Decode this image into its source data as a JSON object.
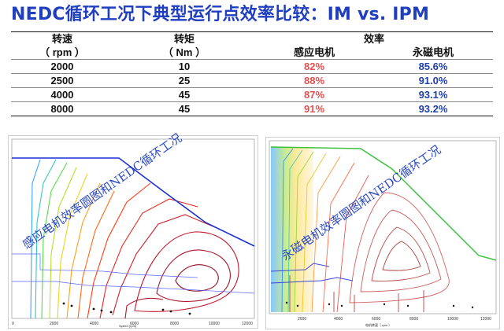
{
  "title": "NEDC循环工况下典型运行点效率比较：IM vs. IPM",
  "table": {
    "header": {
      "speed": "转速",
      "torque": "转矩",
      "efficiency": "效率",
      "speed_unit": "（ rpm ）",
      "torque_unit": "（ Nm ）",
      "im": "感应电机",
      "ipm": "永磁电机"
    },
    "rows": [
      {
        "speed": "2000",
        "torque": "10",
        "im": "82%",
        "ipm": "85.6%"
      },
      {
        "speed": "2500",
        "torque": "25",
        "im": "88%",
        "ipm": "91.0%"
      },
      {
        "speed": "4000",
        "torque": "45",
        "im": "87%",
        "ipm": "93.1%"
      },
      {
        "speed": "8000",
        "torque": "45",
        "im": "91%",
        "ipm": "93.2%"
      }
    ]
  },
  "left_map": {
    "overlay_text": "感应电机效率圆图和NEDC循环工况",
    "x_ticks": [
      "0",
      "2000",
      "4000",
      "6000",
      "8000",
      "10000",
      "12000"
    ],
    "x_label": "Speed (rpm)"
  },
  "right_map": {
    "overlay_text": "永磁电机效率圆图和NEDC循环工况",
    "x_ticks": [
      "2000",
      "4000",
      "6000",
      "8000",
      "10000",
      "12000"
    ],
    "x_label": "电机转速（ rpm ）"
  },
  "colors": {
    "title": "#1f3fbf",
    "im_value": "#e3504f",
    "ipm_value": "#1e3fa8",
    "envelope_left": "#1a2fd6",
    "envelope_right": "#3cc23c"
  }
}
